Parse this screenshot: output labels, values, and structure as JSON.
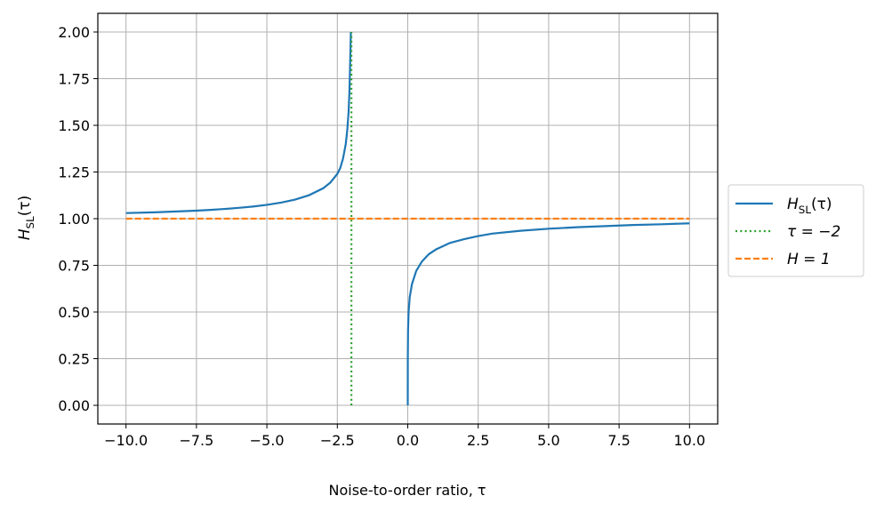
{
  "chart_data": {
    "type": "line",
    "xlabel": "Noise-to-order ratio, τ",
    "ylabel": "H_SL(τ)",
    "xlim": [
      -11,
      11
    ],
    "ylim": [
      -0.1,
      2.1
    ],
    "x_ticks": [
      -10.0,
      -7.5,
      -5.0,
      -2.5,
      0.0,
      2.5,
      5.0,
      7.5,
      10.0
    ],
    "x_tick_labels": [
      "−10.0",
      "−7.5",
      "−5.0",
      "−2.5",
      "0.0",
      "2.5",
      "5.0",
      "7.5",
      "10.0"
    ],
    "y_ticks": [
      0.0,
      0.25,
      0.5,
      0.75,
      1.0,
      1.25,
      1.5,
      1.75,
      2.0
    ],
    "y_tick_labels": [
      "0.00",
      "0.25",
      "0.50",
      "0.75",
      "1.00",
      "1.25",
      "1.50",
      "1.75",
      "2.00"
    ],
    "grid": true,
    "legend_position": "outside-right",
    "series": [
      {
        "name": "H_SL(τ)",
        "style": "solid",
        "color": "#1f77b4",
        "segments": [
          [
            [
              -10.0,
              1.03
            ],
            [
              -9.0,
              1.034
            ],
            [
              -8.0,
              1.04
            ],
            [
              -7.5,
              1.043
            ],
            [
              -7.0,
              1.047
            ],
            [
              -6.5,
              1.052
            ],
            [
              -6.0,
              1.058
            ],
            [
              -5.5,
              1.065
            ],
            [
              -5.0,
              1.074
            ],
            [
              -4.5,
              1.086
            ],
            [
              -4.0,
              1.102
            ],
            [
              -3.5,
              1.126
            ],
            [
              -3.0,
              1.163
            ],
            [
              -2.75,
              1.193
            ],
            [
              -2.5,
              1.24
            ],
            [
              -2.4,
              1.27
            ],
            [
              -2.3,
              1.32
            ],
            [
              -2.2,
              1.4
            ],
            [
              -2.15,
              1.47
            ],
            [
              -2.1,
              1.57
            ],
            [
              -2.07,
              1.68
            ],
            [
              -2.05,
              1.8
            ],
            [
              -2.03,
              1.93
            ],
            [
              -2.02,
              2.0
            ]
          ],
          [
            [
              0.0,
              0.0
            ],
            [
              0.002,
              0.25
            ],
            [
              0.01,
              0.4
            ],
            [
              0.03,
              0.5
            ],
            [
              0.07,
              0.58
            ],
            [
              0.15,
              0.65
            ],
            [
              0.3,
              0.72
            ],
            [
              0.5,
              0.77
            ],
            [
              0.75,
              0.81
            ],
            [
              1.0,
              0.835
            ],
            [
              1.5,
              0.87
            ],
            [
              2.0,
              0.89
            ],
            [
              2.5,
              0.907
            ],
            [
              3.0,
              0.92
            ],
            [
              4.0,
              0.935
            ],
            [
              5.0,
              0.946
            ],
            [
              6.0,
              0.954
            ],
            [
              7.0,
              0.96
            ],
            [
              8.0,
              0.966
            ],
            [
              9.0,
              0.97
            ],
            [
              10.0,
              0.975
            ]
          ]
        ]
      },
      {
        "name": "τ = −2",
        "style": "dotted",
        "color": "#2ca02c",
        "segments": [
          [
            [
              -2.0,
              0.0
            ],
            [
              -2.0,
              2.0
            ]
          ]
        ]
      },
      {
        "name": "H = 1",
        "style": "dashed",
        "color": "#ff7f0e",
        "segments": [
          [
            [
              -10.0,
              1.0
            ],
            [
              10.0,
              1.0
            ]
          ]
        ]
      }
    ]
  }
}
